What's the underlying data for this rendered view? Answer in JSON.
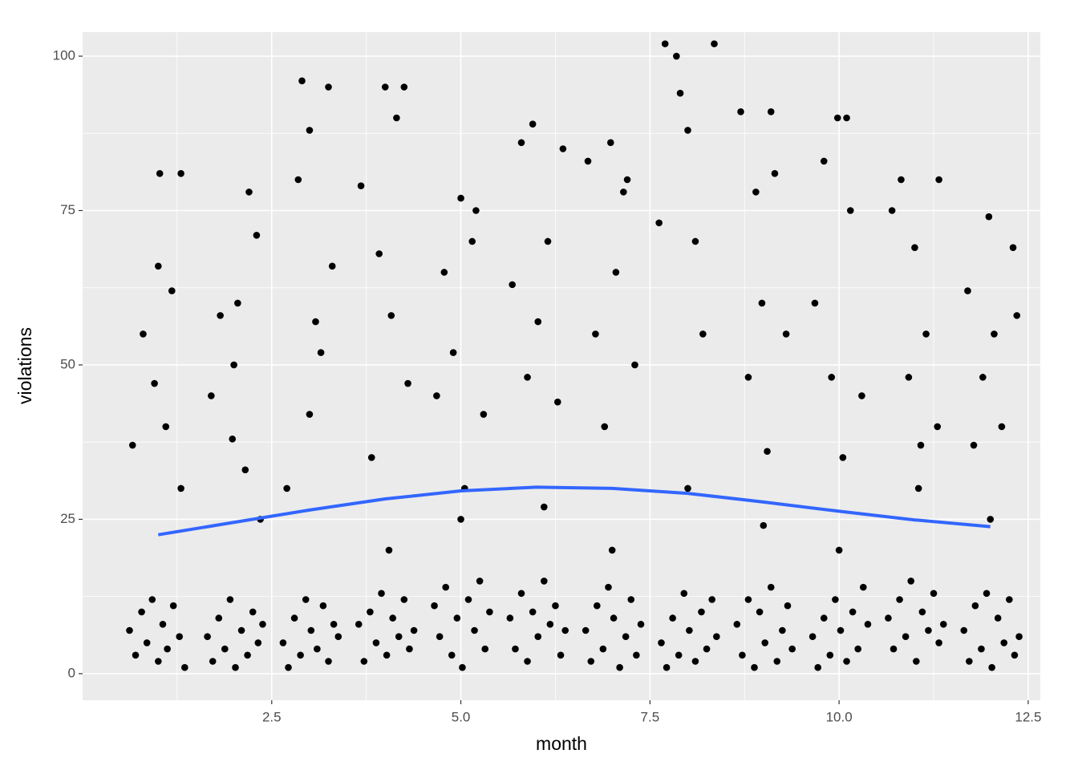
{
  "chart_data": {
    "type": "scatter",
    "xlabel": "month",
    "ylabel": "violations",
    "color": "#000000",
    "x": [
      0.62,
      0.7,
      0.78,
      0.85,
      0.92,
      1,
      1.06,
      1.12,
      1.2,
      1.28,
      1.35,
      0.66,
      0.8,
      0.95,
      1.02,
      1.1,
      1.18,
      1.3,
      1.0,
      1.3,
      1.65,
      1.72,
      1.8,
      1.88,
      1.95,
      2.02,
      2.1,
      2.18,
      2.25,
      2.32,
      2.38,
      1.7,
      1.82,
      1.98,
      2.05,
      2.15,
      2.2,
      2.3,
      2.0,
      2.35,
      2.65,
      2.72,
      2.8,
      2.88,
      2.95,
      3.02,
      3.1,
      3.18,
      3.25,
      3.32,
      3.38,
      2.7,
      2.85,
      2.9,
      3.0,
      3.08,
      3.15,
      3.3,
      3.0,
      3.25,
      3.65,
      3.72,
      3.8,
      3.88,
      3.95,
      4.02,
      4.1,
      4.18,
      4.25,
      4.32,
      4.38,
      3.68,
      3.82,
      3.92,
      4.0,
      4.08,
      4.15,
      4.3,
      4.05,
      4.25,
      4.65,
      4.72,
      4.8,
      4.88,
      4.95,
      5.02,
      5.1,
      5.18,
      5.25,
      5.32,
      5.38,
      4.68,
      4.78,
      4.9,
      5.0,
      5.05,
      5.15,
      5.3,
      5.0,
      5.2,
      5.65,
      5.72,
      5.8,
      5.88,
      5.95,
      6.02,
      6.1,
      6.18,
      6.25,
      6.32,
      6.38,
      5.68,
      5.8,
      5.88,
      5.95,
      6.02,
      6.15,
      6.28,
      6.1,
      6.35,
      6.65,
      6.72,
      6.8,
      6.88,
      6.95,
      7.02,
      7.1,
      7.18,
      7.25,
      7.32,
      7.38,
      6.68,
      6.78,
      6.9,
      6.98,
      7.05,
      7.15,
      7.3,
      7.0,
      7.2,
      7.65,
      7.72,
      7.8,
      7.88,
      7.95,
      8.02,
      8.1,
      8.18,
      8.25,
      8.32,
      8.38,
      7.62,
      7.7,
      7.85,
      7.9,
      8.0,
      8.1,
      8.2,
      8.0,
      8.35,
      8.65,
      8.72,
      8.8,
      8.88,
      8.95,
      9.02,
      9.1,
      9.18,
      9.25,
      9.32,
      9.38,
      8.7,
      8.8,
      8.9,
      8.98,
      9.05,
      9.15,
      9.3,
      9.0,
      9.1,
      9.65,
      9.72,
      9.8,
      9.88,
      9.95,
      10.02,
      10.1,
      10.18,
      10.25,
      10.32,
      10.38,
      9.68,
      9.8,
      9.9,
      9.98,
      10.05,
      10.15,
      10.3,
      10.0,
      10.1,
      10.65,
      10.72,
      10.8,
      10.88,
      10.95,
      11.02,
      11.1,
      11.18,
      11.25,
      11.32,
      11.38,
      10.7,
      10.82,
      10.92,
      11.0,
      11.08,
      11.15,
      11.3,
      11.05,
      11.32,
      11.65,
      11.72,
      11.8,
      11.88,
      11.95,
      12.02,
      12.1,
      12.18,
      12.25,
      12.32,
      12.38,
      11.7,
      11.78,
      11.9,
      11.98,
      12.05,
      12.15,
      12.3,
      12.0,
      12.35
    ],
    "values": [
      7,
      3,
      10,
      5,
      12,
      2,
      8,
      4,
      11,
      6,
      1,
      37,
      55,
      47,
      81,
      40,
      62,
      30,
      66,
      81,
      6,
      2,
      9,
      4,
      12,
      1,
      7,
      3,
      10,
      5,
      8,
      45,
      58,
      38,
      60,
      33,
      78,
      71,
      50,
      25,
      5,
      1,
      9,
      3,
      12,
      7,
      4,
      11,
      2,
      8,
      6,
      30,
      80,
      96,
      88,
      57,
      52,
      66,
      42,
      95,
      8,
      2,
      10,
      5,
      13,
      3,
      9,
      6,
      12,
      4,
      7,
      79,
      35,
      68,
      95,
      58,
      90,
      47,
      20,
      95,
      11,
      6,
      14,
      3,
      9,
      1,
      12,
      7,
      15,
      4,
      10,
      45,
      65,
      52,
      77,
      30,
      70,
      42,
      25,
      75,
      9,
      4,
      13,
      2,
      10,
      6,
      15,
      8,
      11,
      3,
      7,
      63,
      86,
      48,
      89,
      57,
      70,
      44,
      27,
      85,
      7,
      2,
      11,
      4,
      14,
      9,
      1,
      6,
      12,
      3,
      8,
      83,
      55,
      40,
      86,
      65,
      78,
      50,
      20,
      80,
      5,
      1,
      9,
      3,
      13,
      7,
      2,
      10,
      4,
      12,
      6,
      73,
      102,
      100,
      94,
      88,
      70,
      55,
      30,
      102,
      8,
      3,
      12,
      1,
      10,
      5,
      14,
      2,
      7,
      11,
      4,
      91,
      48,
      78,
      60,
      36,
      81,
      55,
      24,
      91,
      6,
      1,
      9,
      3,
      12,
      7,
      2,
      10,
      4,
      14,
      8,
      60,
      83,
      48,
      90,
      35,
      75,
      45,
      20,
      90,
      9,
      4,
      12,
      6,
      15,
      2,
      10,
      7,
      13,
      5,
      8,
      75,
      80,
      48,
      69,
      37,
      55,
      40,
      30,
      80,
      7,
      2,
      11,
      4,
      13,
      1,
      9,
      5,
      12,
      3,
      6,
      62,
      37,
      48,
      74,
      55,
      40,
      69,
      25,
      58
    ],
    "smooth": {
      "color": "#3366ff",
      "x": [
        1,
        2,
        3,
        4,
        5,
        6,
        7,
        8,
        9,
        10,
        11,
        12
      ],
      "values": [
        22.5,
        24.5,
        26.5,
        28.3,
        29.6,
        30.2,
        30,
        29.2,
        27.8,
        26.3,
        24.9,
        23.8
      ]
    },
    "xlim": [
      0,
      12.66
    ],
    "ylim": [
      -4.3,
      103.9
    ],
    "xticks": [
      2.5,
      {
        "value": 5,
        "label": "5.0"
      },
      7.5,
      {
        "value": 10,
        "label": "10.0"
      },
      12.5
    ],
    "yticks": [
      0,
      25,
      50,
      75,
      100
    ],
    "grid": true
  }
}
